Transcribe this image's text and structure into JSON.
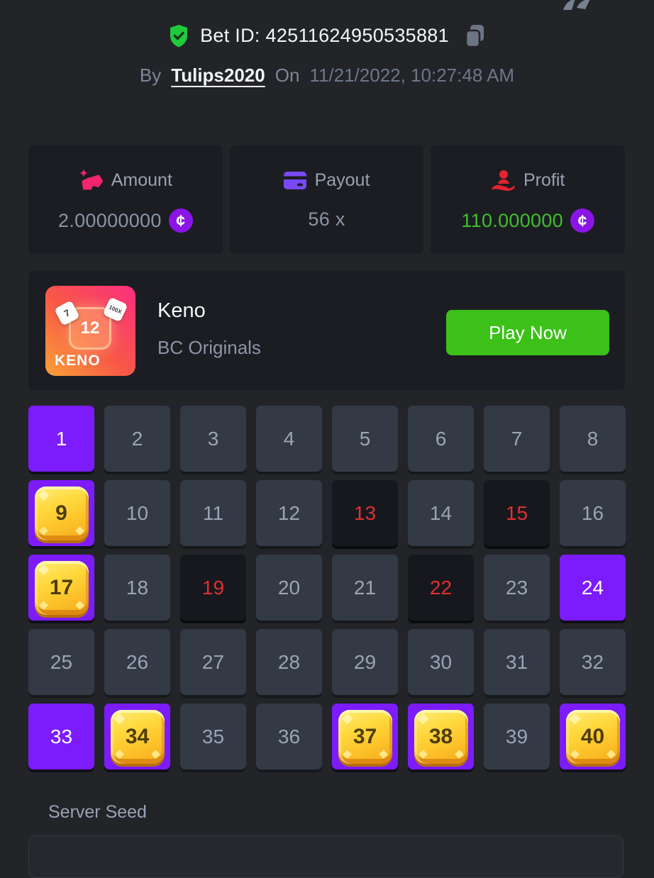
{
  "colors": {
    "bg": "#222428",
    "card": "#1b1d22",
    "cell": "#333a46",
    "celltext": "#9ba4b4",
    "picked": "#7c1bfb",
    "missbg": "#17181d",
    "missred": "#e13030",
    "green": "#3bc117",
    "profit": "#3fbf2b",
    "coin": "#8a15e6",
    "gold": "#fdc32a",
    "amount_icon_pink": "#f3256e",
    "payout_icon_purple": "#7a49f7",
    "profit_icon_red": "#e3232e",
    "verified_green": "#1fcb3c"
  },
  "header": {
    "bet_id_prefix": "Bet ID:",
    "bet_id": "42511624950535881",
    "by_label": "By",
    "username": "Tulips2020",
    "on_label": "On",
    "datetime": "11/21/2022, 10:27:48 AM"
  },
  "coin_symbol": "¢",
  "stats": [
    {
      "label": "Amount",
      "value": "2.00000000",
      "icon": "gold-nuggets-icon",
      "has_coin": true
    },
    {
      "label": "Payout",
      "value": "56 x",
      "icon": "credit-card-icon",
      "has_coin": false
    },
    {
      "label": "Profit",
      "value": "110.000000",
      "icon": "hand-user-icon",
      "has_coin": true
    }
  ],
  "game": {
    "title": "Keno",
    "provider": "BC Originals",
    "play_button": "Play Now",
    "tile": {
      "name": "KENO",
      "gem_number": "12",
      "mini_left": "7",
      "mini_right": "100X"
    }
  },
  "grid": {
    "legend": {
      "picked": "selected",
      "hit": "selected-and-drawn (gem)",
      "miss": "drawn-not-selected",
      "plain": "not-involved"
    },
    "cells": [
      {
        "n": 1,
        "state": "picked"
      },
      {
        "n": 2,
        "state": "plain"
      },
      {
        "n": 3,
        "state": "plain"
      },
      {
        "n": 4,
        "state": "plain"
      },
      {
        "n": 5,
        "state": "plain"
      },
      {
        "n": 6,
        "state": "plain"
      },
      {
        "n": 7,
        "state": "plain"
      },
      {
        "n": 8,
        "state": "plain"
      },
      {
        "n": 9,
        "state": "hit"
      },
      {
        "n": 10,
        "state": "plain"
      },
      {
        "n": 11,
        "state": "plain"
      },
      {
        "n": 12,
        "state": "plain"
      },
      {
        "n": 13,
        "state": "miss"
      },
      {
        "n": 14,
        "state": "plain"
      },
      {
        "n": 15,
        "state": "miss"
      },
      {
        "n": 16,
        "state": "plain"
      },
      {
        "n": 17,
        "state": "hit"
      },
      {
        "n": 18,
        "state": "plain"
      },
      {
        "n": 19,
        "state": "miss"
      },
      {
        "n": 20,
        "state": "plain"
      },
      {
        "n": 21,
        "state": "plain"
      },
      {
        "n": 22,
        "state": "miss"
      },
      {
        "n": 23,
        "state": "plain"
      },
      {
        "n": 24,
        "state": "picked"
      },
      {
        "n": 25,
        "state": "plain"
      },
      {
        "n": 26,
        "state": "plain"
      },
      {
        "n": 27,
        "state": "plain"
      },
      {
        "n": 28,
        "state": "plain"
      },
      {
        "n": 29,
        "state": "plain"
      },
      {
        "n": 30,
        "state": "plain"
      },
      {
        "n": 31,
        "state": "plain"
      },
      {
        "n": 32,
        "state": "plain"
      },
      {
        "n": 33,
        "state": "picked"
      },
      {
        "n": 34,
        "state": "hit"
      },
      {
        "n": 35,
        "state": "plain"
      },
      {
        "n": 36,
        "state": "plain"
      },
      {
        "n": 37,
        "state": "hit"
      },
      {
        "n": 38,
        "state": "hit"
      },
      {
        "n": 39,
        "state": "plain"
      },
      {
        "n": 40,
        "state": "hit"
      }
    ]
  },
  "seed": {
    "label": "Server Seed",
    "value": ""
  }
}
